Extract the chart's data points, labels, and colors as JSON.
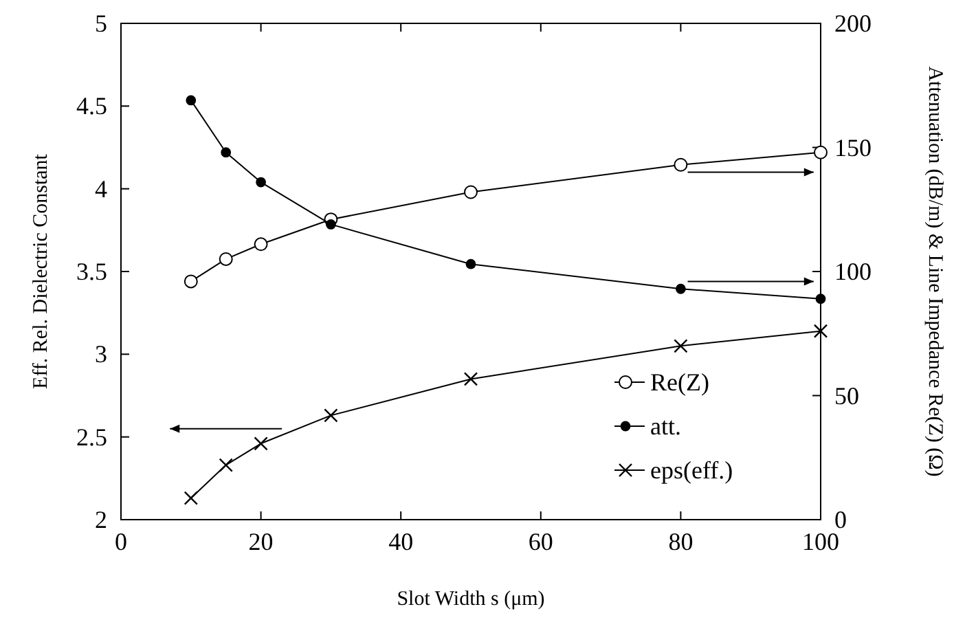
{
  "chart_data": {
    "type": "line",
    "xlabel": "Slot Width s (μm)",
    "ylabel": "Eff. Rel. Dielectric Constant",
    "y2label": "Attenuation (dB/m) & Line Impedance Re(Z) (Ω)",
    "x": [
      10,
      15,
      20,
      30,
      50,
      80,
      100
    ],
    "xlim": [
      0,
      100
    ],
    "xticks": [
      0,
      20,
      40,
      60,
      80,
      100
    ],
    "ylim": [
      2,
      5
    ],
    "yticks": [
      2,
      2.5,
      3,
      3.5,
      4,
      4.5,
      5
    ],
    "y2lim": [
      0,
      200
    ],
    "y2ticks": [
      0,
      50,
      100,
      150,
      200
    ],
    "grid": false,
    "legend": "bottom right",
    "line_style": "solid",
    "series": [
      {
        "name": "Re(Z)",
        "color": "#000000",
        "axis": "y2",
        "marker": "circle",
        "values": [
          96,
          105,
          111,
          121,
          132,
          143,
          148
        ]
      },
      {
        "name": "att.",
        "color": "#000000",
        "axis": "y2",
        "marker": "circle",
        "values": [
          169,
          148,
          136,
          119,
          103,
          93,
          89
        ]
      },
      {
        "name": "eps(eff.)",
        "color": "#000000",
        "marker": "cross",
        "values": [
          2.13,
          2.33,
          2.46,
          2.63,
          2.85,
          3.05,
          3.14
        ]
      }
    ]
  }
}
